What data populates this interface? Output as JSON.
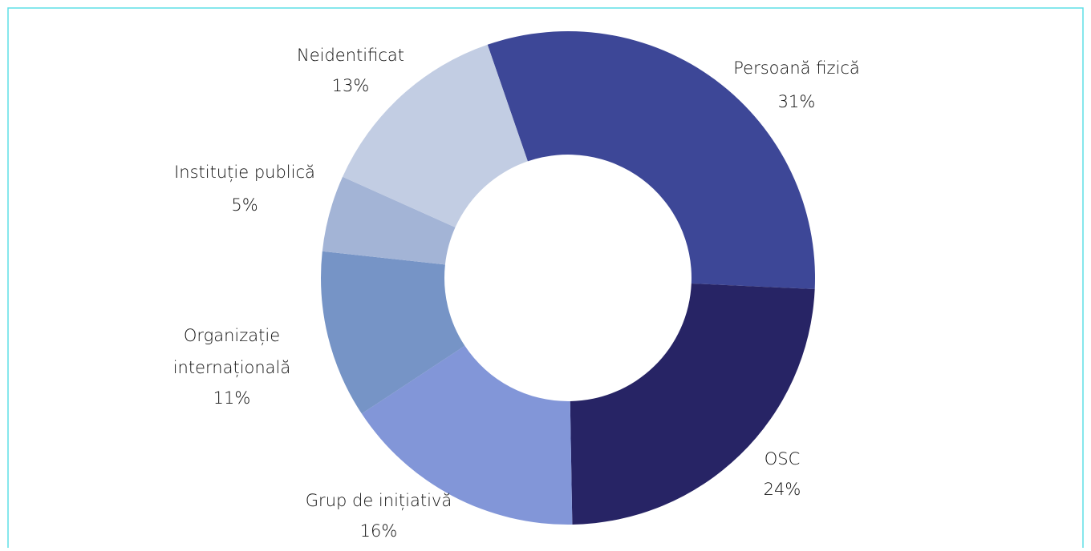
{
  "chart_data": {
    "type": "donut",
    "categories": [
      "Persoană fizică",
      "OSC",
      "Grup de inițiativă",
      "Organizație internațională",
      "Instituție publică",
      "Neidentificat"
    ],
    "values": [
      31,
      24,
      16,
      11,
      5,
      13
    ],
    "value_labels": [
      "31%",
      "24%",
      "16%",
      "11%",
      "5%",
      "13%"
    ],
    "colors": [
      "#3d4797",
      "#272465",
      "#8296d8",
      "#7694c6",
      "#a3b4d6",
      "#c2cde3"
    ]
  }
}
